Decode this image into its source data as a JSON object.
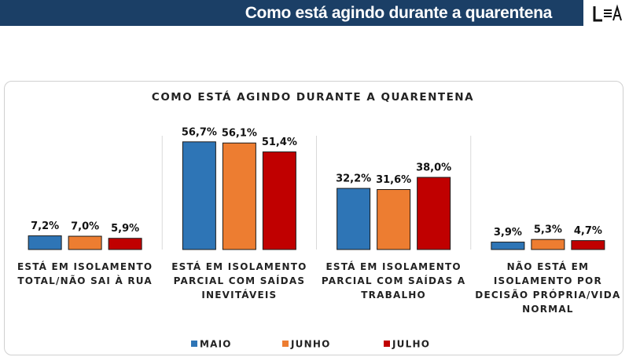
{
  "header": {
    "title": "Como está agindo durante a quarentena"
  },
  "chart_data": {
    "type": "bar",
    "title": "COMO ESTÁ AGINDO DURANTE A QUARENTENA",
    "categories": [
      "ESTÁ EM ISOLAMENTO TOTAL/NÃO SAI À RUA",
      "ESTÁ EM ISOLAMENTO PARCIAL COM SAÍDAS INEVITÁVEIS",
      "ESTÁ EM ISOLAMENTO PARCIAL COM SAÍDAS A TRABALHO",
      "NÃO ESTÁ EM ISOLAMENTO POR DECISÃO PRÓPRIA/VIDA NORMAL"
    ],
    "series": [
      {
        "name": "MAIO",
        "color": "#2e75b6",
        "values": [
          7.2,
          56.7,
          32.2,
          3.9
        ],
        "value_labels": [
          "7,2%",
          "56,7%",
          "32,2%",
          "3,9%"
        ]
      },
      {
        "name": "JUNHO",
        "color": "#ed7d31",
        "values": [
          7.0,
          56.1,
          31.6,
          5.3
        ],
        "value_labels": [
          "7,0%",
          "56,1%",
          "31,6%",
          "5,3%"
        ]
      },
      {
        "name": "JULHO",
        "color": "#c00000",
        "values": [
          5.9,
          51.4,
          38.0,
          4.7
        ],
        "value_labels": [
          "5,9%",
          "51,4%",
          "38,0%",
          "4,7%"
        ]
      }
    ]
  }
}
